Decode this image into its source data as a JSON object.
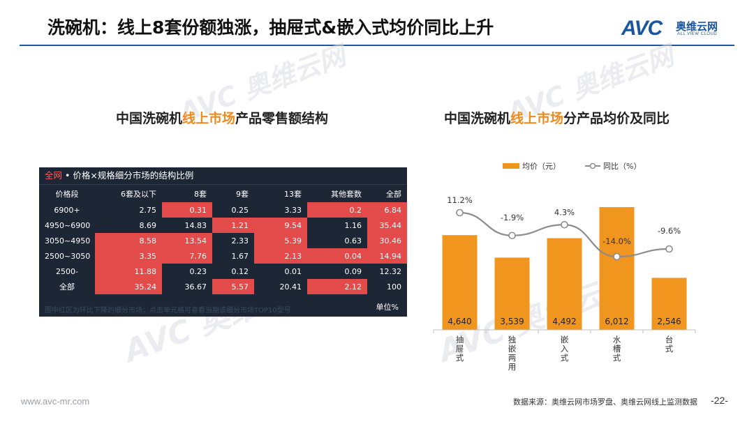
{
  "header": {
    "title": "洗碗机：线上8套份额独涨，抽屉式&嵌入式均价同比上升",
    "logo_mark": "AVC",
    "logo_cn": "奥维云网",
    "logo_en": "ALL VIEW CLOUD"
  },
  "watermark": {
    "text": "AVC 奥维云网",
    "sub": "ALL VIEW CLOUD"
  },
  "left_panel": {
    "title_prefix": "中国洗碗机",
    "title_highlight": "线上市场",
    "title_suffix": "产品零售额结构",
    "head_all": "全网",
    "head_text": " • 价格×规格细分市场的结构比例",
    "footnote": "图中红区为环比下降的细分市场；点击单元格可查看当期该细分市场TOP10型号",
    "unit": "单位%"
  },
  "right_panel": {
    "title_prefix": "中国洗碗机",
    "title_highlight": "线上市场",
    "title_suffix": "分产品均价及同比"
  },
  "chart_data": [
    {
      "type": "table",
      "title": "全网 • 价格×规格细分市场的结构比例",
      "columns": [
        "价格段",
        "6套及以下",
        "8套",
        "9套",
        "13套",
        "其他套数",
        "全部"
      ],
      "rows": [
        [
          "6900+",
          "2.75",
          "0.31",
          "0.25",
          "3.33",
          "0.2",
          "6.84"
        ],
        [
          "4950~6900",
          "8.69",
          "14.83",
          "1.21",
          "9.54",
          "1.16",
          "35.44"
        ],
        [
          "3050~4950",
          "8.58",
          "13.54",
          "2.33",
          "5.39",
          "0.63",
          "30.46"
        ],
        [
          "2500~3050",
          "3.35",
          "7.76",
          "1.67",
          "2.13",
          "0.04",
          "14.94"
        ],
        [
          "2500-",
          "11.88",
          "0.23",
          "0.12",
          "0.01",
          "0.09",
          "12.32"
        ],
        [
          "全部",
          "35.24",
          "36.67",
          "5.57",
          "20.41",
          "2.12",
          "100"
        ]
      ],
      "highlighted": [
        [
          0,
          2
        ],
        [
          0,
          5
        ],
        [
          0,
          6
        ],
        [
          1,
          3
        ],
        [
          1,
          4
        ],
        [
          1,
          6
        ],
        [
          2,
          1
        ],
        [
          2,
          2
        ],
        [
          2,
          4
        ],
        [
          2,
          6
        ],
        [
          3,
          1
        ],
        [
          3,
          2
        ],
        [
          3,
          4
        ],
        [
          3,
          5
        ],
        [
          3,
          6
        ],
        [
          4,
          1
        ],
        [
          5,
          1
        ],
        [
          5,
          3
        ],
        [
          5,
          5
        ]
      ],
      "highlight_color": "#e34b4b",
      "unit": "单位%"
    },
    {
      "type": "bar",
      "title": "中国洗碗机线上市场分产品均价及同比",
      "categories": [
        "抽屉式",
        "独嵌两用",
        "嵌入式",
        "水槽式",
        "台式"
      ],
      "series": [
        {
          "name": "均价（元）",
          "type": "bar",
          "values": [
            4640,
            3539,
            4492,
            6012,
            2546
          ],
          "labels": [
            "4,640",
            "3,539",
            "4,492",
            "6,012",
            "2,546"
          ],
          "color": "#f0961e"
        },
        {
          "name": "同比（%）",
          "type": "line",
          "values": [
            11.2,
            -1.9,
            4.3,
            -14.0,
            -9.6
          ],
          "labels": [
            "11.2%",
            "-1.9%",
            "4.3%",
            "-14.0%",
            "-9.6%"
          ],
          "color": "#8c8c8c"
        }
      ],
      "ylim_bar": [
        0,
        7000
      ],
      "ylim_line": [
        -20,
        15
      ],
      "legend": "top"
    }
  ],
  "footer": {
    "url": "www.avc-mr.com",
    "source": "数据来源：奥维云网市场罗盘、奥维云网线上监测数据",
    "page": "-22-"
  }
}
